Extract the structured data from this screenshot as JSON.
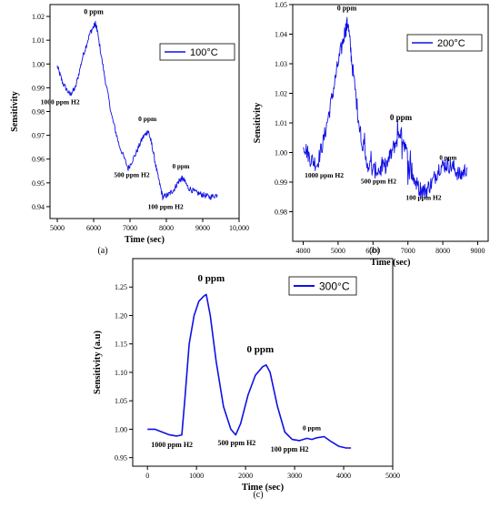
{
  "figure": {
    "line_color": "#1010e6",
    "panels": [
      "(a)",
      "(b)",
      "(c)"
    ]
  },
  "chart_data": [
    {
      "type": "line",
      "panel_label": "(a)",
      "xlabel": "Time (sec)",
      "ylabel": "Sensitivity",
      "xlim": [
        4800,
        10000
      ],
      "ylim": [
        0.935,
        1.025
      ],
      "xticks": [
        5000,
        6000,
        7000,
        8000,
        9000,
        10000
      ],
      "xtick_labels": [
        "5000",
        "6000",
        "7000",
        "8000",
        "9000",
        "10,000"
      ],
      "yticks": [
        0.94,
        0.95,
        0.96,
        0.97,
        0.98,
        0.99,
        1.0,
        1.01,
        1.02
      ],
      "ytick_labels": [
        "0.94",
        "0.95",
        "0.96",
        "0.97",
        "0.98",
        "0.99",
        "1.00",
        "1.01",
        "1.02"
      ],
      "legend": {
        "label": "100°C",
        "position": "top-right"
      },
      "series": [
        {
          "name": "100°C",
          "noise": 0.0012,
          "x": [
            5000,
            5150,
            5350,
            5500,
            5700,
            5900,
            6050,
            6100,
            6300,
            6500,
            6700,
            6950,
            7150,
            7350,
            7500,
            7600,
            7750,
            7900,
            8050,
            8200,
            8350,
            8450,
            8600,
            8800,
            9000,
            9200,
            9400
          ],
          "y": [
            0.999,
            0.992,
            0.987,
            0.99,
            1.003,
            1.013,
            1.017,
            1.014,
            0.995,
            0.978,
            0.966,
            0.956,
            0.962,
            0.969,
            0.972,
            0.966,
            0.954,
            0.944,
            0.945,
            0.947,
            0.951,
            0.952,
            0.948,
            0.946,
            0.945,
            0.944,
            0.945
          ]
        }
      ],
      "annotations": [
        {
          "text": "0 ppm",
          "x": 6000,
          "y": 1.021
        },
        {
          "text": "1000 ppm H2",
          "x": 5080,
          "y": 0.983
        },
        {
          "text": "0 ppm",
          "x": 7480,
          "y": 0.976
        },
        {
          "text": "500 ppm H2",
          "x": 7050,
          "y": 0.9525
        },
        {
          "text": "0 ppm",
          "x": 8400,
          "y": 0.956
        },
        {
          "text": "100 ppm H2",
          "x": 7980,
          "y": 0.939
        }
      ]
    },
    {
      "type": "line",
      "panel_label": "(b)",
      "xlabel": "Time (sec)",
      "ylabel": "Sensitivity",
      "xlim": [
        3700,
        9300
      ],
      "ylim": [
        0.97,
        1.05
      ],
      "xticks": [
        4000,
        5000,
        6000,
        7000,
        8000,
        9000
      ],
      "xtick_labels": [
        "4000",
        "5000",
        "6000",
        "7000",
        "8000",
        "9000"
      ],
      "yticks": [
        0.98,
        0.99,
        1.0,
        1.01,
        1.02,
        1.03,
        1.04,
        1.05
      ],
      "ytick_labels": [
        "0.98",
        "0.99",
        "1.00",
        "1.01",
        "1.02",
        "1.03",
        "1.04",
        "1.05"
      ],
      "legend": {
        "label": "200°C",
        "position": "top-right"
      },
      "series": [
        {
          "name": "200°C",
          "noise": 0.0028,
          "x": [
            4000,
            4200,
            4400,
            4600,
            4800,
            5000,
            5200,
            5280,
            5400,
            5600,
            5800,
            6000,
            6200,
            6400,
            6600,
            6780,
            6900,
            7100,
            7300,
            7500,
            7700,
            7900,
            8100,
            8300,
            8500,
            8700
          ],
          "y": [
            1.003,
            0.998,
            0.996,
            1.005,
            1.017,
            1.03,
            1.041,
            1.044,
            1.03,
            1.01,
            0.997,
            0.994,
            0.994,
            0.996,
            1.002,
            1.007,
            1.003,
            0.993,
            0.988,
            0.987,
            0.99,
            0.995,
            0.996,
            0.995,
            0.992,
            0.995
          ]
        }
      ],
      "annotations": [
        {
          "text": "0 ppm",
          "x": 5250,
          "y": 1.048
        },
        {
          "text": "1000 ppm H2",
          "x": 4600,
          "y": 0.9915
        },
        {
          "text": "0 ppm",
          "x": 6800,
          "y": 1.011
        },
        {
          "text": "500 ppm H2",
          "x": 6160,
          "y": 0.9895
        },
        {
          "text": "0 ppm",
          "x": 8150,
          "y": 0.9975
        },
        {
          "text": "100 ppm H2",
          "x": 7450,
          "y": 0.984
        }
      ]
    },
    {
      "type": "line",
      "panel_label": "(c)",
      "xlabel": "Time (sec)",
      "ylabel": "Sensitivity (a.u)",
      "xlim": [
        -300,
        5000
      ],
      "ylim": [
        0.935,
        1.3
      ],
      "xticks": [
        0,
        1000,
        2000,
        3000,
        4000,
        5000
      ],
      "xtick_labels": [
        "0",
        "1000",
        "2000",
        "3000",
        "4000",
        "5000"
      ],
      "yticks": [
        0.95,
        1.0,
        1.05,
        1.1,
        1.15,
        1.2,
        1.25
      ],
      "ytick_labels": [
        "0.95",
        "1.00",
        "1.05",
        "1.10",
        "1.15",
        "1.20",
        "1.25"
      ],
      "legend": {
        "label": "300°C",
        "position": "top-right"
      },
      "series": [
        {
          "name": "300°C",
          "noise": 0,
          "x": [
            0,
            150,
            300,
            450,
            600,
            700,
            760,
            850,
            950,
            1050,
            1150,
            1200,
            1280,
            1400,
            1550,
            1700,
            1800,
            1900,
            2050,
            2200,
            2350,
            2420,
            2500,
            2650,
            2800,
            2950,
            3100,
            3250,
            3350,
            3450,
            3600,
            3750,
            3900,
            4050,
            4150
          ],
          "y": [
            1.0,
            1.0,
            0.995,
            0.99,
            0.988,
            0.99,
            1.05,
            1.15,
            1.2,
            1.225,
            1.234,
            1.237,
            1.2,
            1.12,
            1.04,
            1.0,
            0.99,
            1.01,
            1.06,
            1.095,
            1.11,
            1.113,
            1.1,
            1.04,
            0.995,
            0.982,
            0.98,
            0.984,
            0.982,
            0.985,
            0.987,
            0.978,
            0.97,
            0.967,
            0.967
          ]
        }
      ],
      "annotations": [
        {
          "text": "0 ppm",
          "x": 1300,
          "y": 1.26
        },
        {
          "text": "1000 ppm H2",
          "x": 500,
          "y": 0.969
        },
        {
          "text": "0 ppm",
          "x": 2300,
          "y": 1.135
        },
        {
          "text": "500 ppm H2",
          "x": 1820,
          "y": 0.972
        },
        {
          "text": "0 ppm",
          "x": 3350,
          "y": 0.998
        },
        {
          "text": "100 ppm H2",
          "x": 2900,
          "y": 0.961
        }
      ]
    }
  ]
}
